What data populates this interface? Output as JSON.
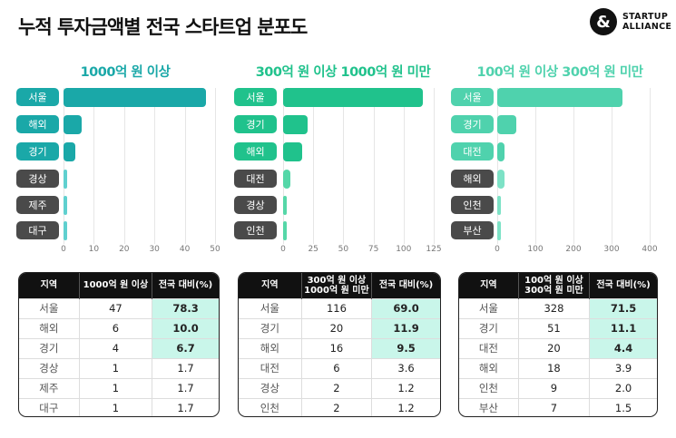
{
  "title": "누적 투자금액별 전국 스타트업 분포도",
  "logo": {
    "symbol": "&",
    "line1": "STARTUP",
    "line2": "ALLIANCE"
  },
  "chart_data": [
    {
      "type": "bar",
      "orientation": "horizontal",
      "title": "1000억 원 이상",
      "color": "#1aa8a8",
      "light_color": "#5fd0cf",
      "categories": [
        "서울",
        "해외",
        "경기",
        "경상",
        "제주",
        "대구"
      ],
      "values": [
        47,
        6,
        4,
        1,
        1,
        1
      ],
      "xlim": [
        0,
        50
      ],
      "ticks": [
        "0",
        "10",
        "20",
        "30",
        "40",
        "50"
      ],
      "grid": true
    },
    {
      "type": "bar",
      "orientation": "horizontal",
      "title": "300억 원 이상 1000억 원 미만",
      "color": "#20c28c",
      "light_color": "#55d7a8",
      "categories": [
        "서울",
        "경기",
        "해외",
        "대전",
        "경상",
        "인천"
      ],
      "values": [
        116,
        20,
        16,
        6,
        2,
        2
      ],
      "xlim": [
        0,
        125
      ],
      "ticks": [
        "0",
        "25",
        "50",
        "75",
        "100",
        "125"
      ],
      "grid": true
    },
    {
      "type": "bar",
      "orientation": "horizontal",
      "title": "100억 원 이상 300억 원 미만",
      "color": "#4fd2ad",
      "light_color": "#7de2c6",
      "categories": [
        "서울",
        "경기",
        "대전",
        "해외",
        "인천",
        "부산"
      ],
      "values": [
        328,
        51,
        20,
        18,
        9,
        7
      ],
      "xlim": [
        0,
        400
      ],
      "ticks": [
        "0",
        "100",
        "200",
        "300",
        "400"
      ],
      "grid": true
    }
  ],
  "tables": [
    {
      "headers": [
        "지역",
        "1000억 원 이상",
        "전국 대비(%)"
      ],
      "rows": [
        [
          "서울",
          "47",
          "78.3"
        ],
        [
          "해외",
          "6",
          "10.0"
        ],
        [
          "경기",
          "4",
          "6.7"
        ],
        [
          "경상",
          "1",
          "1.7"
        ],
        [
          "제주",
          "1",
          "1.7"
        ],
        [
          "대구",
          "1",
          "1.7"
        ]
      ]
    },
    {
      "headers": [
        "지역",
        "300억 원 이상\n1000억 원 미만",
        "전국 대비(%)"
      ],
      "rows": [
        [
          "서울",
          "116",
          "69.0"
        ],
        [
          "경기",
          "20",
          "11.9"
        ],
        [
          "해외",
          "16",
          "9.5"
        ],
        [
          "대전",
          "6",
          "3.6"
        ],
        [
          "경상",
          "2",
          "1.2"
        ],
        [
          "인천",
          "2",
          "1.2"
        ]
      ]
    },
    {
      "headers": [
        "지역",
        "100억 원 이상\n300억 원 미만",
        "전국 대비(%)"
      ],
      "rows": [
        [
          "서울",
          "328",
          "71.5"
        ],
        [
          "경기",
          "51",
          "11.1"
        ],
        [
          "대전",
          "20",
          "4.4"
        ],
        [
          "해외",
          "18",
          "3.9"
        ],
        [
          "인천",
          "9",
          "2.0"
        ],
        [
          "부산",
          "7",
          "1.5"
        ]
      ]
    }
  ],
  "pill_dark_color": "#4a4a4a",
  "highlight_color": "#c9f6ea"
}
